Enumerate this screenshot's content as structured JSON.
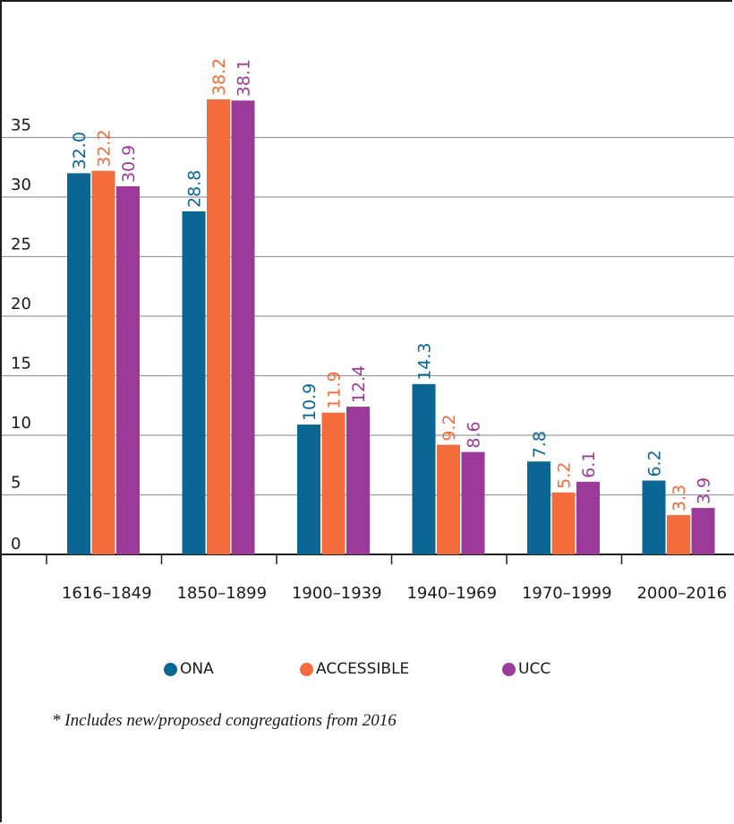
{
  "chart_data": {
    "type": "bar",
    "categories": [
      "1616–1849",
      "1850–1899",
      "1900–1939",
      "1940–1969",
      "1970–1999",
      "2000–2016"
    ],
    "series": [
      {
        "name": "ONA",
        "color": "#0b6694",
        "values": [
          32.0,
          28.8,
          10.9,
          14.3,
          7.8,
          6.2
        ]
      },
      {
        "name": "ACCESSIBLE",
        "color": "#f46b3c",
        "values": [
          32.2,
          38.2,
          11.9,
          9.2,
          5.2,
          3.3
        ]
      },
      {
        "name": "UCC",
        "color": "#9c3a9a",
        "values": [
          30.9,
          38.1,
          12.4,
          8.6,
          6.1,
          3.9
        ]
      }
    ],
    "yticks": [
      0,
      5,
      10,
      15,
      20,
      25,
      30,
      35
    ],
    "ylim": [
      0,
      40
    ],
    "grid": true,
    "value_labels_rotated": true,
    "legend_position": "bottom-center",
    "title": "",
    "xlabel": "",
    "ylabel": ""
  },
  "footnote": "* Includes new/proposed congregations from 2016"
}
